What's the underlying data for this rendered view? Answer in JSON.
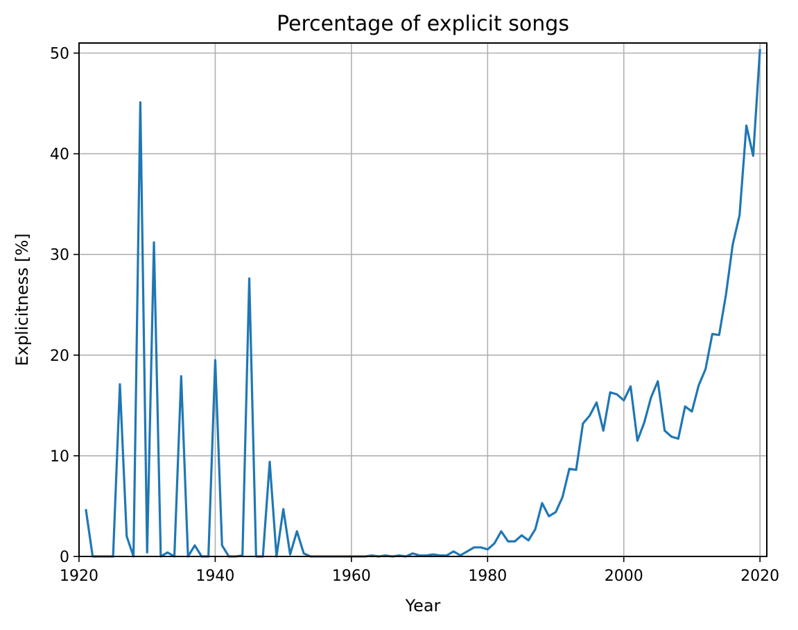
{
  "chart_data": {
    "type": "line",
    "title": "Percentage of explicit songs",
    "xlabel": "Year",
    "ylabel": "Explicitness [%]",
    "xlim": [
      1920,
      2021
    ],
    "ylim": [
      0,
      51
    ],
    "xticks": [
      1920,
      1940,
      1960,
      1980,
      2000,
      2020
    ],
    "yticks": [
      0,
      10,
      20,
      30,
      40,
      50
    ],
    "grid": true,
    "line_color": "#1f77b4",
    "series": [
      {
        "x": [
          1921,
          1922,
          1923,
          1924,
          1925,
          1926,
          1927,
          1928,
          1929,
          1930,
          1931,
          1932,
          1933,
          1934,
          1935,
          1936,
          1937,
          1938,
          1939,
          1940,
          1941,
          1942,
          1943,
          1944,
          1945,
          1946,
          1947,
          1948,
          1949,
          1950,
          1951,
          1952,
          1953,
          1954,
          1955,
          1956,
          1957,
          1958,
          1959,
          1960,
          1961,
          1962,
          1963,
          1964,
          1965,
          1966,
          1967,
          1968,
          1969,
          1970,
          1971,
          1972,
          1973,
          1974,
          1975,
          1976,
          1977,
          1978,
          1979,
          1980,
          1981,
          1982,
          1983,
          1984,
          1985,
          1986,
          1987,
          1988,
          1989,
          1990,
          1991,
          1992,
          1993,
          1994,
          1995,
          1996,
          1997,
          1998,
          1999,
          2000,
          2001,
          2002,
          2003,
          2004,
          2005,
          2006,
          2007,
          2008,
          2009,
          2010,
          2011,
          2012,
          2013,
          2014,
          2015,
          2016,
          2017,
          2018,
          2019,
          2020
        ],
        "values": [
          4.7,
          0,
          0,
          0,
          0,
          17.1,
          2.0,
          0,
          45.1,
          0.4,
          31.2,
          0,
          0.4,
          0,
          17.9,
          0,
          1.1,
          0,
          0,
          19.5,
          1.1,
          0,
          0,
          0.1,
          27.6,
          0,
          0,
          9.4,
          0,
          4.7,
          0.2,
          2.5,
          0.3,
          0,
          0,
          0,
          0,
          0,
          0,
          0,
          0,
          0,
          0.1,
          0,
          0.1,
          0,
          0.1,
          0,
          0.3,
          0.1,
          0.1,
          0.2,
          0.1,
          0.1,
          0.5,
          0.1,
          0.5,
          0.9,
          0.9,
          0.7,
          1.3,
          2.5,
          1.5,
          1.5,
          2.1,
          1.6,
          2.7,
          5.3,
          4.0,
          4.4,
          5.9,
          8.7,
          8.6,
          13.2,
          14.0,
          15.3,
          12.5,
          16.3,
          16.1,
          15.5,
          16.9,
          11.5,
          13.3,
          15.8,
          17.4,
          12.5,
          11.9,
          11.7,
          14.9,
          14.4,
          17.0,
          18.6,
          22.1,
          22.0,
          26.0,
          31.0,
          33.9,
          42.8,
          39.8,
          50.4
        ]
      }
    ]
  }
}
